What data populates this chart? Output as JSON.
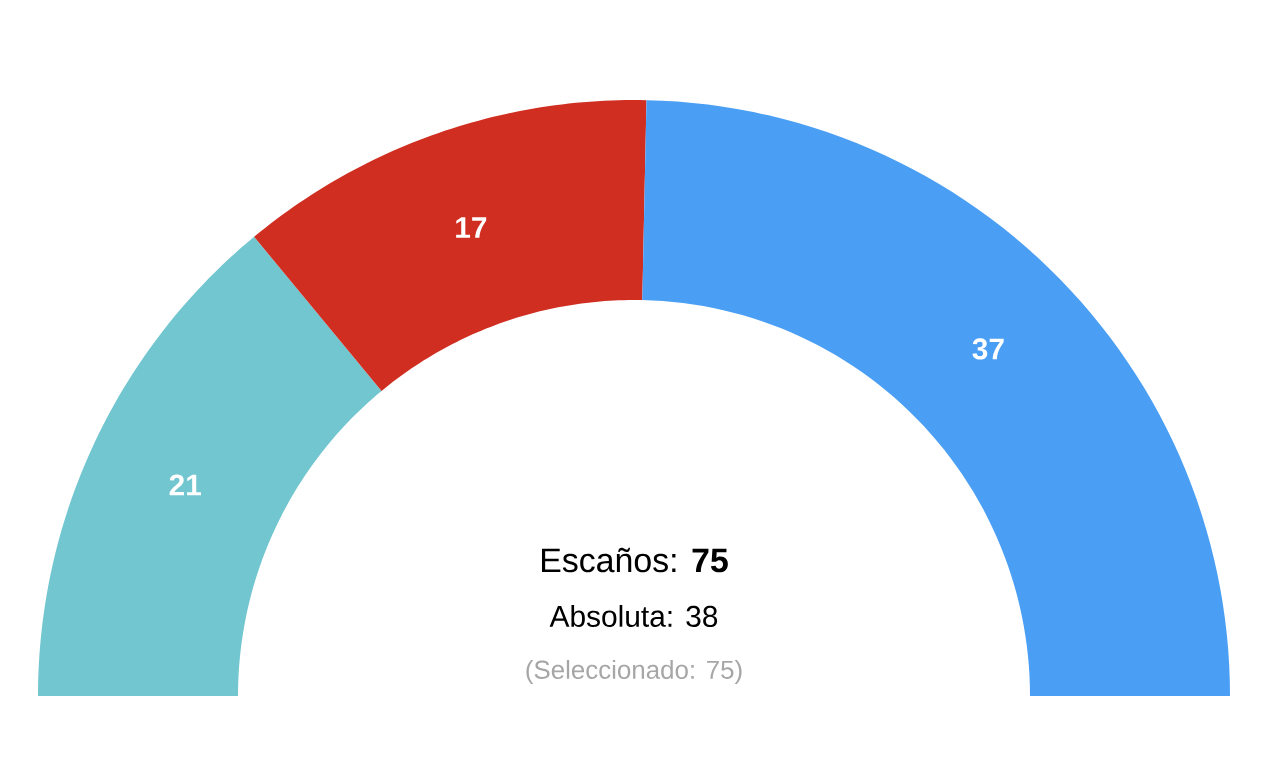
{
  "chart_data": {
    "type": "donut",
    "categories": [
      null,
      null,
      null
    ],
    "values": [
      21,
      17,
      37
    ],
    "colors": [
      "#72c6d0",
      "#d12e22",
      "#4a9ff5"
    ],
    "data_labels": true,
    "annotations": [
      "Escaños: **75**",
      "Absoluta: 38",
      "(Seleccionado: 75)"
    ]
  }
}
